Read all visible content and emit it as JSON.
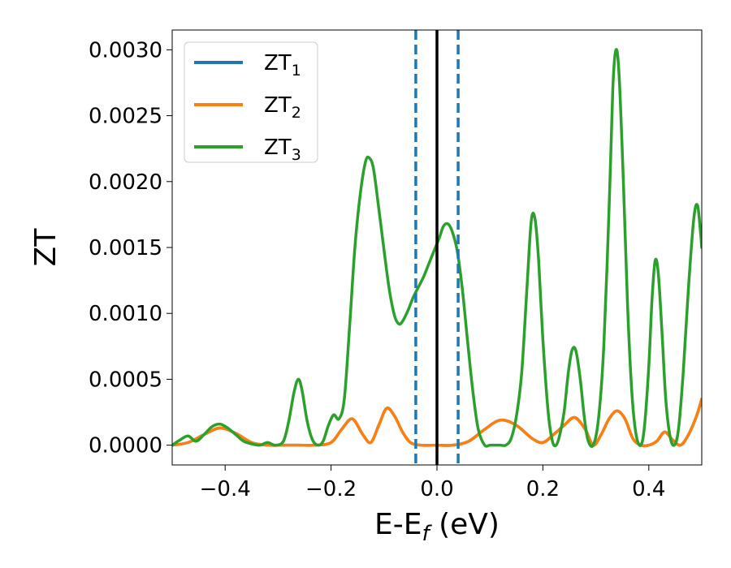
{
  "chart_data": {
    "type": "line",
    "title": "",
    "xlabel": "E-E",
    "xlabel_sub": "f",
    "xlabel_unit": " (eV)",
    "ylabel": "ZT",
    "xlim": [
      -0.5,
      0.5
    ],
    "ylim": [
      -0.00015,
      0.00315
    ],
    "x_ticks": [
      -0.4,
      -0.2,
      0.0,
      0.2,
      0.4
    ],
    "x_tick_labels": [
      "−0.4",
      "−0.2",
      "0.0",
      "0.2",
      "0.4"
    ],
    "y_ticks": [
      0.0,
      0.0005,
      0.001,
      0.0015,
      0.002,
      0.0025,
      0.003
    ],
    "y_tick_labels": [
      "0.0000",
      "0.0005",
      "0.0010",
      "0.0015",
      "0.0020",
      "0.0025",
      "0.0030"
    ],
    "grid": false,
    "legend_position": "top-left",
    "vertical_lines": [
      {
        "x": 0.0,
        "color": "#000000",
        "style": "solid"
      },
      {
        "x": -0.04,
        "color": "#1f77b4",
        "style": "dashed"
      },
      {
        "x": 0.04,
        "color": "#1f77b4",
        "style": "dashed"
      }
    ],
    "series": [
      {
        "name": "ZT",
        "sub": "1",
        "color": "#1f77b4",
        "points": [
          [
            -0.5,
            0.0
          ],
          [
            -0.47,
            2e-05
          ],
          [
            -0.44,
            8e-05
          ],
          [
            -0.41,
            0.00013
          ],
          [
            -0.38,
            9e-05
          ],
          [
            -0.35,
            2e-05
          ],
          [
            -0.32,
            0.0
          ],
          [
            -0.29,
            0.0
          ],
          [
            -0.26,
            0.0
          ],
          [
            -0.23,
            0.0
          ],
          [
            -0.2,
            2e-05
          ],
          [
            -0.18,
            0.00012
          ],
          [
            -0.16,
            0.0002
          ],
          [
            -0.14,
            8e-05
          ],
          [
            -0.125,
            2e-05
          ],
          [
            -0.11,
            0.00015
          ],
          [
            -0.095,
            0.00028
          ],
          [
            -0.08,
            0.00022
          ],
          [
            -0.065,
            0.0001
          ],
          [
            -0.05,
            2e-05
          ],
          [
            -0.03,
            0.0
          ],
          [
            0.0,
            0.0
          ],
          [
            0.03,
            0.0
          ],
          [
            0.06,
            3e-05
          ],
          [
            0.09,
            0.00012
          ],
          [
            0.12,
            0.00019
          ],
          [
            0.15,
            0.00015
          ],
          [
            0.18,
            5e-05
          ],
          [
            0.2,
            2e-05
          ],
          [
            0.22,
            8e-05
          ],
          [
            0.24,
            0.00015
          ],
          [
            0.26,
            0.00021
          ],
          [
            0.28,
            0.00012
          ],
          [
            0.295,
            0.0
          ],
          [
            0.31,
            8e-05
          ],
          [
            0.325,
            0.0002
          ],
          [
            0.34,
            0.00026
          ],
          [
            0.355,
            0.0002
          ],
          [
            0.37,
            5e-05
          ],
          [
            0.385,
            0.0
          ],
          [
            0.4,
            0.0
          ],
          [
            0.415,
            3e-05
          ],
          [
            0.43,
            0.0001
          ],
          [
            0.445,
            4e-05
          ],
          [
            0.46,
            0.0
          ],
          [
            0.475,
            8e-05
          ],
          [
            0.49,
            0.00022
          ],
          [
            0.5,
            0.00035
          ]
        ]
      },
      {
        "name": "ZT",
        "sub": "2",
        "color": "#ff7f0e",
        "points": [
          [
            -0.5,
            0.0
          ],
          [
            -0.47,
            2e-05
          ],
          [
            -0.44,
            8e-05
          ],
          [
            -0.41,
            0.00013
          ],
          [
            -0.38,
            9e-05
          ],
          [
            -0.35,
            2e-05
          ],
          [
            -0.32,
            0.0
          ],
          [
            -0.29,
            0.0
          ],
          [
            -0.26,
            0.0
          ],
          [
            -0.23,
            0.0
          ],
          [
            -0.2,
            2e-05
          ],
          [
            -0.18,
            0.00012
          ],
          [
            -0.16,
            0.0002
          ],
          [
            -0.14,
            8e-05
          ],
          [
            -0.125,
            2e-05
          ],
          [
            -0.11,
            0.00015
          ],
          [
            -0.095,
            0.00028
          ],
          [
            -0.08,
            0.00022
          ],
          [
            -0.065,
            0.0001
          ],
          [
            -0.05,
            2e-05
          ],
          [
            -0.03,
            0.0
          ],
          [
            0.0,
            0.0
          ],
          [
            0.03,
            0.0
          ],
          [
            0.06,
            3e-05
          ],
          [
            0.09,
            0.00012
          ],
          [
            0.12,
            0.00019
          ],
          [
            0.15,
            0.00015
          ],
          [
            0.18,
            5e-05
          ],
          [
            0.2,
            2e-05
          ],
          [
            0.22,
            8e-05
          ],
          [
            0.24,
            0.00015
          ],
          [
            0.26,
            0.00021
          ],
          [
            0.28,
            0.00012
          ],
          [
            0.295,
            0.0
          ],
          [
            0.31,
            8e-05
          ],
          [
            0.325,
            0.0002
          ],
          [
            0.34,
            0.00026
          ],
          [
            0.355,
            0.0002
          ],
          [
            0.37,
            5e-05
          ],
          [
            0.385,
            0.0
          ],
          [
            0.4,
            0.0
          ],
          [
            0.415,
            3e-05
          ],
          [
            0.43,
            0.0001
          ],
          [
            0.445,
            4e-05
          ],
          [
            0.46,
            0.0
          ],
          [
            0.475,
            8e-05
          ],
          [
            0.49,
            0.00022
          ],
          [
            0.5,
            0.00035
          ]
        ]
      },
      {
        "name": "ZT",
        "sub": "3",
        "color": "#2ca02c",
        "points": [
          [
            -0.5,
            0.0
          ],
          [
            -0.485,
            4e-05
          ],
          [
            -0.47,
            7e-05
          ],
          [
            -0.455,
            3e-05
          ],
          [
            -0.44,
            8e-05
          ],
          [
            -0.425,
            0.00014
          ],
          [
            -0.41,
            0.00016
          ],
          [
            -0.395,
            0.00013
          ],
          [
            -0.38,
            8e-05
          ],
          [
            -0.365,
            3e-05
          ],
          [
            -0.35,
            1e-05
          ],
          [
            -0.335,
            0.0
          ],
          [
            -0.32,
            2e-05
          ],
          [
            -0.305,
            0.0
          ],
          [
            -0.29,
            3e-05
          ],
          [
            -0.28,
            0.00018
          ],
          [
            -0.27,
            0.0004
          ],
          [
            -0.262,
            0.0005
          ],
          [
            -0.255,
            0.00042
          ],
          [
            -0.245,
            0.00018
          ],
          [
            -0.235,
            4e-05
          ],
          [
            -0.225,
            0.0
          ],
          [
            -0.215,
            3e-05
          ],
          [
            -0.205,
            0.00015
          ],
          [
            -0.195,
            0.00023
          ],
          [
            -0.185,
            0.0002
          ],
          [
            -0.175,
            0.00035
          ],
          [
            -0.165,
            0.0009
          ],
          [
            -0.155,
            0.0015
          ],
          [
            -0.145,
            0.0019
          ],
          [
            -0.135,
            0.00215
          ],
          [
            -0.128,
            0.00218
          ],
          [
            -0.12,
            0.0021
          ],
          [
            -0.11,
            0.0018
          ],
          [
            -0.1,
            0.00148
          ],
          [
            -0.09,
            0.00118
          ],
          [
            -0.08,
            0.00098
          ],
          [
            -0.072,
            0.00092
          ],
          [
            -0.065,
            0.00094
          ],
          [
            -0.055,
            0.00102
          ],
          [
            -0.045,
            0.00112
          ],
          [
            -0.035,
            0.0012
          ],
          [
            -0.025,
            0.00128
          ],
          [
            -0.015,
            0.00138
          ],
          [
            -0.005,
            0.00148
          ],
          [
            0.005,
            0.00158
          ],
          [
            0.012,
            0.00166
          ],
          [
            0.02,
            0.00168
          ],
          [
            0.028,
            0.00163
          ],
          [
            0.038,
            0.00148
          ],
          [
            0.048,
            0.00118
          ],
          [
            0.058,
            0.00078
          ],
          [
            0.068,
            0.0004
          ],
          [
            0.078,
            0.00012
          ],
          [
            0.09,
            0.0
          ],
          [
            0.1,
            0.0
          ],
          [
            0.11,
            0.0
          ],
          [
            0.12,
            0.0
          ],
          [
            0.13,
            0.0
          ],
          [
            0.14,
            5e-05
          ],
          [
            0.15,
            0.00022
          ],
          [
            0.16,
            0.00055
          ],
          [
            0.17,
            0.0012
          ],
          [
            0.178,
            0.0017
          ],
          [
            0.185,
            0.00172
          ],
          [
            0.192,
            0.0014
          ],
          [
            0.2,
            0.0008
          ],
          [
            0.21,
            0.00025
          ],
          [
            0.218,
            3e-05
          ],
          [
            0.225,
            0.0
          ],
          [
            0.232,
            8e-05
          ],
          [
            0.24,
            0.00025
          ],
          [
            0.248,
            0.00055
          ],
          [
            0.255,
            0.00072
          ],
          [
            0.262,
            0.00072
          ],
          [
            0.27,
            0.00052
          ],
          [
            0.278,
            0.00022
          ],
          [
            0.285,
            4e-05
          ],
          [
            0.295,
            0.0
          ],
          [
            0.305,
            0.0002
          ],
          [
            0.315,
            0.00075
          ],
          [
            0.325,
            0.0018
          ],
          [
            0.332,
            0.0027
          ],
          [
            0.338,
            0.003
          ],
          [
            0.344,
            0.0028
          ],
          [
            0.352,
            0.002
          ],
          [
            0.36,
            0.00105
          ],
          [
            0.368,
            0.0004
          ],
          [
            0.376,
            8e-05
          ],
          [
            0.385,
            0.0
          ],
          [
            0.392,
            0.00015
          ],
          [
            0.4,
            0.0006
          ],
          [
            0.406,
            0.0011
          ],
          [
            0.412,
            0.0014
          ],
          [
            0.418,
            0.0013
          ],
          [
            0.425,
            0.00085
          ],
          [
            0.432,
            0.00035
          ],
          [
            0.44,
            7e-05
          ],
          [
            0.448,
            0.0
          ],
          [
            0.456,
            0.00012
          ],
          [
            0.465,
            0.00055
          ],
          [
            0.475,
            0.0012
          ],
          [
            0.485,
            0.00172
          ],
          [
            0.492,
            0.00182
          ],
          [
            0.498,
            0.0016
          ],
          [
            0.5,
            0.0015
          ]
        ]
      }
    ]
  }
}
